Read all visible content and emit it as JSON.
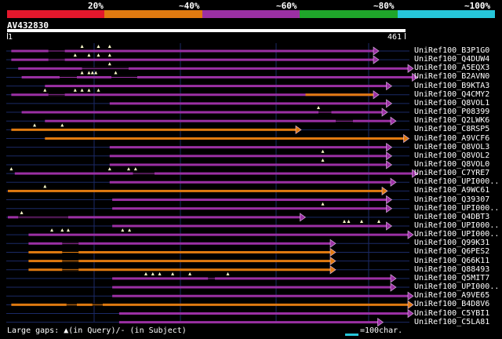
{
  "colors": {
    "purple": "#9b30a4",
    "orange": "#e07a10",
    "grid": "#1b2a66",
    "gapTriangle": "#ffffcc",
    "scale": [
      "#e3172c",
      "#e07a10",
      "#9b30a4",
      "#1fa52a",
      "#26c6da"
    ]
  },
  "percent_labels": [
    "20%",
    "~40%",
    "~60%",
    "~80%",
    "~100%"
  ],
  "query": {
    "name": "AV432830",
    "start": "1",
    "end": "461",
    "length": 461
  },
  "tracks": [
    {
      "name": "UniRef100_B3P1G0",
      "color": "purple",
      "start": 4,
      "end": 430,
      "gaps": [
        [
          47,
          66
        ]
      ],
      "tri": [
        86,
        105,
        118
      ]
    },
    {
      "name": "UniRef100_Q4DUW4",
      "color": "purple",
      "start": 4,
      "end": 430,
      "gaps": [
        [
          47,
          66
        ]
      ],
      "tri": [
        78,
        94,
        105,
        118
      ]
    },
    {
      "name": "UniRef100_A5EQX3",
      "color": "purple",
      "start": 12,
      "end": 470,
      "gaps": [
        [
          86,
          140
        ]
      ],
      "tri": [
        118
      ]
    },
    {
      "name": "UniRef100_B2AVN0",
      "color": "purple",
      "start": 16,
      "end": 475,
      "gaps": [
        [
          60,
          80
        ],
        [
          120,
          150
        ]
      ],
      "tri": [
        86,
        94,
        98,
        102,
        125
      ]
    },
    {
      "name": "UniRef100_B9KTA3",
      "color": "purple",
      "start": 43,
      "end": 445,
      "gaps": [],
      "tri": []
    },
    {
      "name": "UniRef100_Q4CMY2",
      "color": "purple",
      "start": 4,
      "end": 430,
      "gaps": [
        [
          47,
          66
        ]
      ],
      "tri": [
        43,
        78,
        86,
        94,
        105
      ],
      "tail_color": "orange",
      "tail_start": 345
    },
    {
      "name": "UniRef100_Q8VOL1",
      "color": "purple",
      "start": 118,
      "end": 445,
      "gaps": [],
      "tri": []
    },
    {
      "name": "UniRef100_P08399",
      "color": "purple",
      "start": 16,
      "end": 440,
      "gaps": [
        [
          360,
          375
        ]
      ],
      "tri": [
        360
      ],
      "tail_color": "orange",
      "tail_start": 0
    },
    {
      "name": "UniRef100_Q2LWK6",
      "color": "purple",
      "start": 43,
      "end": 450,
      "gaps": [
        [
          380,
          400
        ]
      ],
      "tri": []
    },
    {
      "name": "UniRef100_C8RSP5",
      "color": "orange",
      "start": 4,
      "end": 340,
      "gaps": [],
      "tri": [
        31,
        63
      ]
    },
    {
      "name": "UniRef100_A9VCF6",
      "color": "orange",
      "start": 43,
      "end": 465,
      "gaps": [],
      "tri": []
    },
    {
      "name": "UniRef100_Q8VOL3",
      "color": "purple",
      "start": 118,
      "end": 445,
      "gaps": [],
      "tri": []
    },
    {
      "name": "UniRef100_Q8VOL2",
      "color": "purple",
      "start": 118,
      "end": 445,
      "gaps": [],
      "tri": [
        365
      ]
    },
    {
      "name": "UniRef100_Q8VOL0",
      "color": "purple",
      "start": 118,
      "end": 445,
      "gaps": [],
      "tri": [
        365
      ]
    },
    {
      "name": "UniRef100_C7YRE7",
      "color": "purple",
      "start": 8,
      "end": 475,
      "gaps": [
        [
          145,
          170
        ]
      ],
      "tri": [
        4,
        118,
        140,
        148
      ]
    },
    {
      "name": "UniRef100_UPI000..",
      "color": "purple",
      "start": 118,
      "end": 450,
      "gaps": [],
      "tri": []
    },
    {
      "name": "UniRef100_A9WC61",
      "color": "orange",
      "start": 0,
      "end": 440,
      "gaps": [],
      "tri": [
        43
      ]
    },
    {
      "name": "UniRef100_Q39307",
      "color": "purple",
      "start": 121,
      "end": 445,
      "gaps": [],
      "tri": []
    },
    {
      "name": "UniRef100_UPI000..",
      "color": "purple",
      "start": 121,
      "end": 445,
      "gaps": [],
      "tri": [
        365
      ]
    },
    {
      "name": "UniRef100_Q4DBT3",
      "color": "purple",
      "start": 0,
      "end": 345,
      "gaps": [
        [
          12,
          70
        ]
      ],
      "tri": [
        16
      ]
    },
    {
      "name": "UniRef100_UPI000..",
      "color": "purple",
      "start": 121,
      "end": 445,
      "gaps": [],
      "tri": [
        390,
        395,
        410,
        430
      ]
    },
    {
      "name": "UniRef100_UPI000..",
      "color": "purple",
      "start": 24,
      "end": 470,
      "gaps": [],
      "tri": [
        51,
        63,
        70,
        133,
        141
      ]
    },
    {
      "name": "UniRef100_Q99K31",
      "color": "purple",
      "start": 24,
      "end": 380,
      "gaps": [
        [
          63,
          82
        ]
      ],
      "tri": []
    },
    {
      "name": "UniRef100_Q6PES2",
      "color": "orange",
      "start": 24,
      "end": 380,
      "gaps": [
        [
          63,
          82
        ]
      ],
      "tri": []
    },
    {
      "name": "UniRef100_Q66K11",
      "color": "orange",
      "start": 24,
      "end": 380,
      "gaps": [
        [
          63,
          82
        ]
      ],
      "tri": []
    },
    {
      "name": "UniRef100_Q88493",
      "color": "orange",
      "start": 24,
      "end": 380,
      "gaps": [
        [
          63,
          82
        ]
      ],
      "tri": []
    },
    {
      "name": "UniRef100_Q5MIT7",
      "color": "purple",
      "start": 121,
      "end": 450,
      "gaps": [
        [
          232,
          240
        ]
      ],
      "tri": [
        160,
        168,
        176,
        191,
        211,
        255
      ]
    },
    {
      "name": "UniRef100_UPI000..",
      "color": "purple",
      "start": 121,
      "end": 450,
      "gaps": [],
      "tri": []
    },
    {
      "name": "UniRef100_A9VE65",
      "color": "purple",
      "start": 121,
      "end": 470,
      "gaps": [],
      "tri": []
    },
    {
      "name": "UniRef100_B4D8V6",
      "color": "orange",
      "start": 4,
      "end": 470,
      "gaps": [
        [
          68,
          80
        ],
        [
          98,
          110
        ]
      ],
      "tri": []
    },
    {
      "name": "UniRef100_C5YBI1",
      "color": "purple",
      "start": 129,
      "end": 470,
      "gaps": [],
      "tri": []
    },
    {
      "name": "UniRef100_C5LA81",
      "color": "purple",
      "start": 129,
      "end": 435,
      "gaps": [],
      "tri": []
    }
  ],
  "legend": {
    "text": "Large gaps: ▲(in Query)/- (in Subject)",
    "key_text": "=100char."
  }
}
